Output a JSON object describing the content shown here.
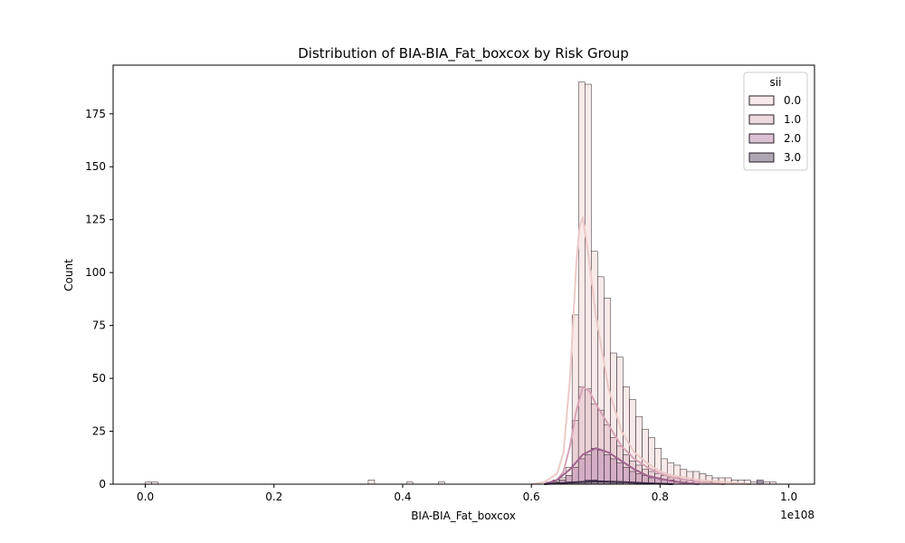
{
  "chart_data": {
    "type": "histogram",
    "title": "Distribution of BIA-BIA_Fat_boxcox by Risk Group",
    "xlabel": "BIA-BIA_Fat_boxcox",
    "ylabel": "Count",
    "x_offset_label": "1e108",
    "xlim": [
      -0.05,
      1.04
    ],
    "ylim": [
      0,
      198
    ],
    "x_ticks": [
      0.0,
      0.2,
      0.4,
      0.6,
      0.8,
      1.0
    ],
    "x_tick_labels": [
      "0.0",
      "0.2",
      "0.4",
      "0.6",
      "0.8",
      "1.0"
    ],
    "y_ticks": [
      0,
      25,
      50,
      75,
      100,
      125,
      150,
      175
    ],
    "y_tick_labels": [
      "0",
      "25",
      "50",
      "75",
      "100",
      "125",
      "150",
      "175"
    ],
    "bin_start": 0.0,
    "bin_width": 0.0099,
    "legend": {
      "title": "sii",
      "placement": "top-right",
      "entries": [
        "0.0",
        "1.0",
        "2.0",
        "3.0"
      ]
    },
    "series": [
      {
        "name": "0.0",
        "color": "#f3dcd9",
        "kde_color": "#eccac7",
        "bins": {
          "0": 1,
          "1": 1,
          "35": 2,
          "41": 1,
          "46": 1,
          "63": 1,
          "64": 2,
          "65": 3,
          "66": 8,
          "67": 80,
          "68": 190,
          "69": 189,
          "70": 110,
          "71": 98,
          "72": 88,
          "73": 62,
          "74": 60,
          "75": 46,
          "76": 40,
          "77": 32,
          "78": 26,
          "79": 22,
          "80": 17,
          "81": 12,
          "82": 10,
          "83": 9,
          "84": 7,
          "85": 6,
          "86": 6,
          "87": 5,
          "88": 4,
          "89": 3,
          "90": 3,
          "91": 3,
          "92": 2,
          "93": 2,
          "94": 2,
          "95": 1,
          "96": 1,
          "97": 1,
          "98": 1
        },
        "kde_x": [
          0.6,
          0.62,
          0.64,
          0.65,
          0.66,
          0.67,
          0.675,
          0.68,
          0.69,
          0.7,
          0.72,
          0.74,
          0.76,
          0.78,
          0.8,
          0.82,
          0.84,
          0.86,
          0.88,
          0.9,
          0.92,
          0.94
        ],
        "kde_y": [
          0,
          1,
          5,
          15,
          50,
          105,
          122,
          126,
          105,
          80,
          45,
          25,
          15,
          10,
          6,
          4,
          3,
          2,
          1.5,
          1,
          0.5,
          0
        ]
      },
      {
        "name": "1.0",
        "color": "#e3bfca",
        "kde_color": "#d7a3b7",
        "bins": {
          "64": 1,
          "65": 2,
          "66": 4,
          "67": 30,
          "68": 46,
          "69": 45,
          "70": 38,
          "71": 35,
          "72": 28,
          "73": 22,
          "74": 18,
          "75": 14,
          "76": 11,
          "77": 9,
          "78": 7,
          "79": 6,
          "80": 5,
          "81": 4,
          "82": 3,
          "83": 3,
          "84": 2,
          "85": 2,
          "86": 1,
          "87": 1,
          "88": 1
        },
        "kde_x": [
          0.62,
          0.64,
          0.65,
          0.66,
          0.67,
          0.68,
          0.69,
          0.7,
          0.72,
          0.74,
          0.76,
          0.78,
          0.8,
          0.82,
          0.84,
          0.86,
          0.88,
          0.9
        ],
        "kde_y": [
          0,
          2,
          6,
          18,
          35,
          46,
          44,
          38,
          28,
          18,
          12,
          8,
          5,
          3,
          2,
          1,
          0.5,
          0
        ]
      },
      {
        "name": "2.0",
        "color": "#c496b5",
        "kde_color": "#a0638f",
        "bins": {
          "64": 1,
          "65": 2,
          "66": 4,
          "67": 8,
          "68": 12,
          "69": 14,
          "70": 17,
          "71": 16,
          "72": 14,
          "73": 12,
          "74": 10,
          "75": 8,
          "76": 6,
          "77": 5,
          "78": 4,
          "79": 3,
          "80": 3,
          "81": 2,
          "82": 2,
          "83": 1,
          "84": 1
        },
        "kde_x": [
          0.62,
          0.64,
          0.66,
          0.68,
          0.7,
          0.72,
          0.74,
          0.76,
          0.78,
          0.8,
          0.82,
          0.84,
          0.86
        ],
        "kde_y": [
          0,
          2,
          7,
          14,
          17,
          15,
          11,
          7,
          4,
          2.5,
          1.5,
          0.5,
          0
        ]
      },
      {
        "name": "3.0",
        "color": "#7a6a80",
        "kde_color": "#3d2b48",
        "bins": {
          "66": 1,
          "67": 1,
          "68": 1,
          "69": 2,
          "70": 2,
          "71": 1,
          "72": 1,
          "73": 1,
          "74": 1,
          "96": 2
        },
        "kde_x": [
          0.62,
          0.66,
          0.7,
          0.74,
          0.78,
          0.82
        ],
        "kde_y": [
          0,
          0.8,
          1.4,
          1.0,
          0.4,
          0
        ]
      }
    ]
  }
}
